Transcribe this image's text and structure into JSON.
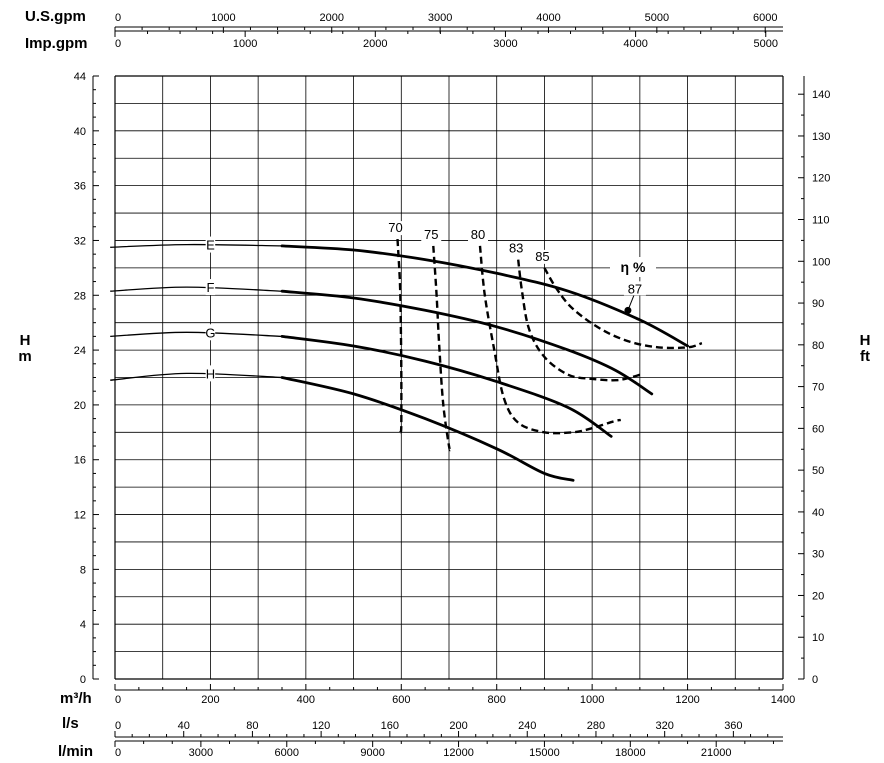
{
  "chart_data": {
    "type": "line",
    "title": "",
    "x_axis": {
      "primary": {
        "label": "m³/h",
        "range": [
          0,
          1400
        ],
        "ticks": [
          "0",
          "200",
          "400",
          "600",
          "800",
          "1000",
          "1200",
          "1400"
        ]
      },
      "secondary": [
        {
          "label": "l/s",
          "ticks": [
            "0",
            "40",
            "80",
            "120",
            "160",
            "200",
            "240",
            "280",
            "320",
            "360"
          ]
        },
        {
          "label": "l/min",
          "ticks": [
            "0",
            "3000",
            "6000",
            "9000",
            "12000",
            "15000",
            "18000",
            "21000"
          ]
        },
        {
          "label": "U.S.gpm",
          "ticks": [
            "0",
            "1000",
            "2000",
            "3000",
            "4000",
            "5000",
            "6000"
          ]
        },
        {
          "label": "Imp.gpm",
          "ticks": [
            "0",
            "1000",
            "2000",
            "3000",
            "4000",
            "5000"
          ]
        }
      ]
    },
    "y_axis": {
      "left": {
        "label_top": "H",
        "label_bottom": "m",
        "range": [
          0,
          44
        ],
        "ticks": [
          "0",
          "4",
          "8",
          "12",
          "16",
          "20",
          "24",
          "28",
          "32",
          "36",
          "40",
          "44"
        ]
      },
      "right": {
        "label_top": "H",
        "label_bottom": "ft",
        "ticks": [
          "0",
          "10",
          "20",
          "30",
          "40",
          "50",
          "60",
          "70",
          "80",
          "90",
          "100",
          "110",
          "120",
          "130",
          "140"
        ]
      }
    },
    "grid": true,
    "head_curves": [
      {
        "name": "E",
        "points": [
          [
            -10,
            31.5
          ],
          [
            150,
            31.7
          ],
          [
            350,
            31.6
          ],
          [
            500,
            31.3
          ],
          [
            650,
            30.6
          ],
          [
            800,
            29.6
          ],
          [
            950,
            28.3
          ],
          [
            1100,
            26.2
          ],
          [
            1200,
            24.3
          ]
        ]
      },
      {
        "name": "F",
        "points": [
          [
            -10,
            28.3
          ],
          [
            150,
            28.6
          ],
          [
            350,
            28.3
          ],
          [
            500,
            27.8
          ],
          [
            650,
            26.9
          ],
          [
            800,
            25.7
          ],
          [
            950,
            24.0
          ],
          [
            1050,
            22.5
          ],
          [
            1125,
            20.8
          ]
        ]
      },
      {
        "name": "G",
        "points": [
          [
            -10,
            25.0
          ],
          [
            150,
            25.3
          ],
          [
            350,
            25.0
          ],
          [
            500,
            24.3
          ],
          [
            650,
            23.2
          ],
          [
            800,
            21.7
          ],
          [
            950,
            19.8
          ],
          [
            1040,
            17.7
          ]
        ]
      },
      {
        "name": "H",
        "points": [
          [
            -10,
            21.8
          ],
          [
            150,
            22.3
          ],
          [
            350,
            22.0
          ],
          [
            500,
            20.8
          ],
          [
            650,
            19.0
          ],
          [
            800,
            16.8
          ],
          [
            900,
            15.0
          ],
          [
            960,
            14.5
          ]
        ]
      }
    ],
    "efficiency_curves": [
      {
        "name": "70",
        "points": [
          [
            592,
            32.1
          ],
          [
            597,
            29.0
          ],
          [
            599,
            26.0
          ],
          [
            600,
            22.5
          ],
          [
            600,
            18.5
          ],
          [
            598,
            18.0
          ]
        ]
      },
      {
        "name": "75",
        "points": [
          [
            667,
            31.6
          ],
          [
            674,
            28.0
          ],
          [
            680,
            24.0
          ],
          [
            688,
            20.0
          ],
          [
            700,
            17.0
          ],
          [
            703,
            16.8
          ]
        ]
      },
      {
        "name": "80",
        "points": [
          [
            765,
            31.6
          ],
          [
            775,
            28.0
          ],
          [
            795,
            24.0
          ],
          [
            815,
            20.5
          ],
          [
            845,
            18.7
          ],
          [
            900,
            18.0
          ],
          [
            960,
            18.0
          ],
          [
            1000,
            18.3
          ],
          [
            1045,
            18.8
          ],
          [
            1060,
            18.9
          ]
        ]
      },
      {
        "name": "83",
        "points": [
          [
            845,
            30.6
          ],
          [
            853,
            28.3
          ],
          [
            868,
            25.5
          ],
          [
            900,
            23.5
          ],
          [
            950,
            22.2
          ],
          [
            1000,
            21.9
          ],
          [
            1050,
            21.8
          ],
          [
            1080,
            22.0
          ],
          [
            1100,
            22.2
          ]
        ]
      },
      {
        "name": "85",
        "points": [
          [
            900,
            30.0
          ],
          [
            925,
            28.5
          ],
          [
            960,
            27.0
          ],
          [
            1020,
            25.5
          ],
          [
            1080,
            24.6
          ],
          [
            1140,
            24.2
          ],
          [
            1200,
            24.2
          ],
          [
            1230,
            24.5
          ]
        ]
      }
    ],
    "efficiency_title": "η %",
    "best_efficiency": {
      "label": "87",
      "x": 1075,
      "y": 26.9
    }
  }
}
